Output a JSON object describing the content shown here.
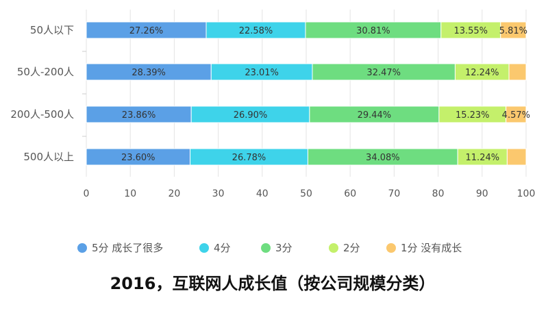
{
  "chart_data": {
    "type": "bar",
    "orientation": "horizontal",
    "stacked": true,
    "title": "2016，互联网人成长值（按公司规模分类）",
    "categories": [
      "50人以下",
      "50人-200人",
      "200人-500人",
      "500人以上"
    ],
    "series": [
      {
        "name": "5分 成长了很多",
        "color": "#5ba0e6",
        "values": [
          27.26,
          28.39,
          23.86,
          23.6
        ],
        "labels": [
          "27.26%",
          "28.39%",
          "23.86%",
          "23.60%"
        ]
      },
      {
        "name": "4分",
        "color": "#3ed3ea",
        "values": [
          22.58,
          23.01,
          26.9,
          26.78
        ],
        "labels": [
          "22.58%",
          "23.01%",
          "26.90%",
          "26.78%"
        ]
      },
      {
        "name": "3分",
        "color": "#6edd80",
        "values": [
          30.81,
          32.47,
          29.44,
          34.08
        ],
        "labels": [
          "30.81%",
          "32.47%",
          "29.44%",
          "34.08%"
        ]
      },
      {
        "name": "2分",
        "color": "#c4f06b",
        "values": [
          13.55,
          12.24,
          15.23,
          11.24
        ],
        "labels": [
          "13.55%",
          "12.24%",
          "15.23%",
          "11.24%"
        ]
      },
      {
        "name": "1分 没有成长",
        "color": "#fbc86e",
        "values": [
          5.81,
          3.89,
          4.57,
          4.3
        ],
        "labels": [
          "5.81%",
          "",
          "4.57%",
          ""
        ]
      }
    ],
    "xlim": [
      0,
      100
    ],
    "xticks": [
      0,
      10,
      20,
      30,
      40,
      50,
      60,
      70,
      80,
      90,
      100
    ],
    "grid": true,
    "legend_position": "bottom"
  }
}
